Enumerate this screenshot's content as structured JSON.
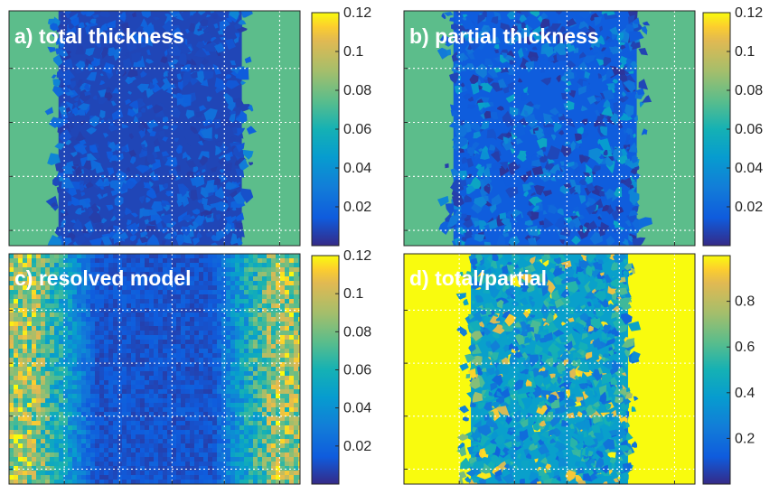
{
  "chart_data": [
    {
      "type": "heatmap",
      "title": "a) total thickness",
      "colormap": "parula",
      "clim": [
        0,
        0.12
      ],
      "colorbar_ticks": [
        "0.02",
        "0.04",
        "0.06",
        "0.08",
        "0.1",
        "0.12"
      ],
      "colorbar_tick_values": [
        0.02,
        0.04,
        0.06,
        0.08,
        0.1,
        0.12
      ],
      "background_value": 0.075,
      "band_value": 0.008,
      "band_extent": [
        0.17,
        0.8
      ],
      "grid": true,
      "axis_tick_labels": false
    },
    {
      "type": "heatmap",
      "title": "b) partial thickness",
      "colormap": "parula",
      "clim": [
        0,
        0.12
      ],
      "colorbar_ticks": [
        "0.02",
        "0.04",
        "0.06",
        "0.08",
        "0.1",
        "0.12"
      ],
      "colorbar_tick_values": [
        0.02,
        0.04,
        0.06,
        0.08,
        0.1,
        0.12
      ],
      "background_value": 0.075,
      "band_value": 0.015,
      "band_extent": [
        0.17,
        0.8
      ],
      "grid": true,
      "axis_tick_labels": false
    },
    {
      "type": "heatmap",
      "title": "c) resolved model",
      "colormap": "parula",
      "clim": [
        0,
        0.12
      ],
      "colorbar_ticks": [
        "0.02",
        "0.04",
        "0.06",
        "0.08",
        "0.1",
        "0.12"
      ],
      "colorbar_tick_values": [
        0.02,
        0.04,
        0.06,
        0.08,
        0.1,
        0.12
      ],
      "background_value": 0.09,
      "band_value": 0.012,
      "band_extent": [
        0.17,
        0.8
      ],
      "grid": true,
      "axis_tick_labels": false
    },
    {
      "type": "heatmap",
      "title": "d) total/partial",
      "colormap": "parula",
      "clim": [
        0,
        1
      ],
      "colorbar_ticks": [
        "0.2",
        "0.4",
        "0.6",
        "0.8"
      ],
      "colorbar_tick_values": [
        0.2,
        0.4,
        0.6,
        0.8
      ],
      "background_value": 1.0,
      "band_value": 0.4,
      "band_extent": [
        0.23,
        0.77
      ],
      "grid": true,
      "axis_tick_labels": false
    }
  ]
}
